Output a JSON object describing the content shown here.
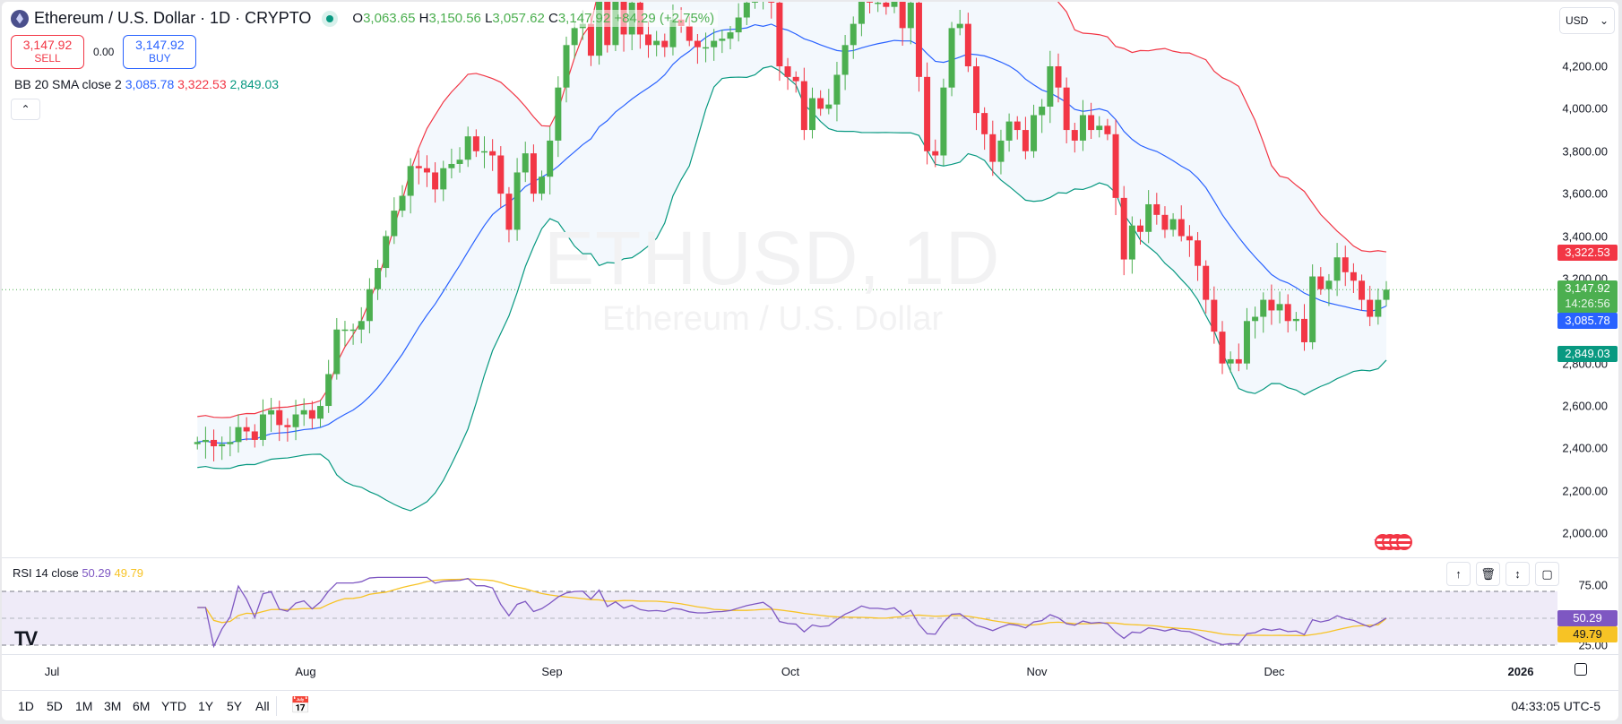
{
  "header": {
    "symbol_title": "Ethereum / U.S. Dollar · 1D · CRYPTO",
    "ohlc": {
      "o_label": "O",
      "o": "3,063.65",
      "h_label": "H",
      "h": "3,150.56",
      "l_label": "L",
      "l": "3,057.62",
      "c_label": "C",
      "c": "3,147.92",
      "change": "+84.29 (+2.75%)"
    }
  },
  "trade": {
    "sell_price": "3,147.92",
    "sell_label": "SELL",
    "spread": "0.00",
    "buy_price": "3,147.92",
    "buy_label": "BUY"
  },
  "indicators": {
    "bb": {
      "label": "BB 20 SMA close 2",
      "basis": "3,085.78",
      "upper": "3,322.53",
      "lower": "2,849.03"
    },
    "rsi": {
      "label": "RSI 14 close",
      "rsi": "50.29",
      "ma": "49.79"
    }
  },
  "watermark": {
    "line1": "ETHUSD, 1D",
    "line2": "Ethereum / U.S. Dollar"
  },
  "price_axis": {
    "currency": "USD",
    "labels": [
      "4,200.00",
      "4,000.00",
      "3,800.00",
      "3,600.00",
      "3,400.00",
      "3,200.00",
      "2,800.00",
      "2,600.00",
      "2,400.00",
      "2,200.00",
      "2,000.00"
    ],
    "tags": {
      "upper": "3,322.53",
      "last": "3,147.92",
      "countdown": "14:26:56",
      "basis": "3,085.78",
      "lower": "2,849.03"
    }
  },
  "rsi_axis": {
    "labels": [
      "75.00",
      "25.00"
    ],
    "tags": {
      "rsi": "50.29",
      "ma": "49.79"
    }
  },
  "time_axis": {
    "labels": [
      "Jul",
      "Aug",
      "Sep",
      "Oct",
      "Nov",
      "Dec",
      "2026"
    ]
  },
  "toolbar": {
    "ranges": [
      "1D",
      "5D",
      "1M",
      "3M",
      "6M",
      "YTD",
      "1Y",
      "5Y",
      "All"
    ],
    "clock": "04:33:05 UTC-5"
  },
  "colors": {
    "up": "#4caf50",
    "down": "#f23645",
    "bb_basis": "#2962ff",
    "bb_upper": "#f23645",
    "bb_lower": "#089981",
    "bb_fill": "#f3f8fd",
    "rsi": "#7e57c2",
    "rsi_ma": "#f7c325",
    "rsi_band": "#efebf8"
  },
  "chart_data": {
    "type": "candlestick",
    "title": "Ethereum / U.S. Dollar · 1D · CRYPTO",
    "ylabel": "USD",
    "ylim": [
      1950,
      4450
    ],
    "x_ticks": [
      "Jul",
      "Aug",
      "Sep",
      "Oct",
      "Nov",
      "Dec",
      "2026"
    ],
    "closes": [
      2430,
      2440,
      2410,
      2420,
      2430,
      2500,
      2480,
      2440,
      2560,
      2580,
      2510,
      2500,
      2560,
      2580,
      2540,
      2600,
      2750,
      2960,
      2960,
      2960,
      3000,
      3150,
      3250,
      3400,
      3520,
      3590,
      3730,
      3720,
      3700,
      3620,
      3720,
      3740,
      3760,
      3870,
      3800,
      3800,
      3780,
      3600,
      3430,
      3700,
      3790,
      3600,
      3680,
      3850,
      4100,
      4300,
      4380,
      4400,
      4250,
      4750,
      4300,
      4560,
      4350,
      4500,
      4350,
      4300,
      4320,
      4290,
      4420,
      4390,
      4320,
      4290,
      4290,
      4320,
      4330,
      4360,
      4430,
      4500,
      4550,
      4600,
      4500,
      4200,
      4150,
      4130,
      3900,
      4050,
      4000,
      4020,
      4160,
      4300,
      4400,
      4550,
      4500,
      4500,
      4480,
      4520,
      4380,
      4500,
      4150,
      3800,
      3780,
      4100,
      4380,
      4400,
      4200,
      3980,
      3880,
      3750,
      3850,
      3940,
      3900,
      3800,
      3970,
      4010,
      4200,
      4100,
      3900,
      3850,
      3970,
      3900,
      3920,
      3880,
      3580,
      3290,
      3450,
      3420,
      3550,
      3500,
      3430,
      3480,
      3400,
      3380,
      3260,
      3100,
      2950,
      2800,
      2820,
      2800,
      3000,
      3020,
      3100,
      3050,
      3080,
      3000,
      3010,
      2900,
      3210,
      3150,
      3190,
      3300,
      3230,
      3190,
      3100,
      3020,
      3100,
      3147.92
    ],
    "bb_last": {
      "basis": 3085.78,
      "upper": 3322.53,
      "lower": 2849.03
    },
    "rsi": {
      "last": 50.29,
      "ma_last": 49.79,
      "ylim": [
        0,
        100
      ],
      "bands": [
        25,
        50,
        75
      ]
    }
  }
}
